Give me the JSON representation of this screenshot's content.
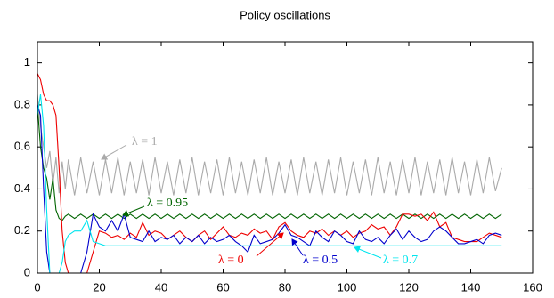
{
  "chart_data": {
    "type": "line",
    "title": "Policy oscillations",
    "x": [
      0,
      1,
      2,
      3,
      4,
      5,
      6,
      7,
      8,
      9,
      10,
      12,
      14,
      16,
      18,
      20,
      22,
      24,
      26,
      28,
      30,
      32,
      34,
      36,
      38,
      40,
      42,
      44,
      46,
      48,
      50,
      52,
      54,
      56,
      58,
      60,
      62,
      64,
      66,
      68,
      70,
      72,
      74,
      76,
      78,
      80,
      82,
      84,
      86,
      88,
      90,
      92,
      94,
      96,
      98,
      100,
      102,
      104,
      106,
      108,
      110,
      112,
      114,
      116,
      118,
      120,
      122,
      124,
      126,
      128,
      130,
      132,
      134,
      136,
      138,
      140,
      142,
      144,
      146,
      148,
      150
    ],
    "series": [
      {
        "name": "λ = 1",
        "color": "#aaaaaa",
        "values": [
          0.85,
          0.7,
          0.6,
          0.5,
          0.58,
          0.42,
          0.55,
          0.38,
          0.53,
          0.4,
          0.54,
          0.37,
          0.55,
          0.38,
          0.53,
          0.37,
          0.54,
          0.38,
          0.55,
          0.37,
          0.53,
          0.38,
          0.54,
          0.37,
          0.55,
          0.38,
          0.53,
          0.37,
          0.54,
          0.38,
          0.55,
          0.37,
          0.53,
          0.38,
          0.54,
          0.37,
          0.55,
          0.38,
          0.53,
          0.37,
          0.54,
          0.38,
          0.55,
          0.37,
          0.53,
          0.38,
          0.54,
          0.37,
          0.55,
          0.38,
          0.53,
          0.37,
          0.54,
          0.38,
          0.55,
          0.37,
          0.53,
          0.38,
          0.54,
          0.37,
          0.55,
          0.38,
          0.53,
          0.37,
          0.54,
          0.38,
          0.55,
          0.37,
          0.53,
          0.38,
          0.54,
          0.37,
          0.55,
          0.38,
          0.53,
          0.37,
          0.54,
          0.38,
          0.55,
          0.39,
          0.5
        ]
      },
      {
        "name": "λ = 0.95",
        "color": "#006400",
        "values": [
          0.8,
          0.6,
          0.5,
          0.45,
          0.35,
          0.45,
          0.3,
          0.26,
          0.25,
          0.27,
          0.28,
          0.26,
          0.28,
          0.26,
          0.28,
          0.26,
          0.28,
          0.26,
          0.28,
          0.26,
          0.28,
          0.26,
          0.28,
          0.26,
          0.28,
          0.26,
          0.28,
          0.26,
          0.28,
          0.26,
          0.28,
          0.26,
          0.28,
          0.26,
          0.28,
          0.26,
          0.28,
          0.26,
          0.28,
          0.26,
          0.28,
          0.26,
          0.28,
          0.26,
          0.28,
          0.26,
          0.28,
          0.26,
          0.28,
          0.26,
          0.28,
          0.26,
          0.28,
          0.26,
          0.28,
          0.26,
          0.28,
          0.26,
          0.28,
          0.26,
          0.28,
          0.26,
          0.28,
          0.26,
          0.28,
          0.26,
          0.28,
          0.26,
          0.28,
          0.26,
          0.28,
          0.26,
          0.28,
          0.26,
          0.28,
          0.26,
          0.28,
          0.26,
          0.28,
          0.26,
          0.28
        ]
      },
      {
        "name": "λ = 0",
        "color": "#ee0000",
        "values": [
          0.95,
          0.92,
          0.85,
          0.82,
          0.82,
          0.8,
          0.75,
          0.5,
          0.2,
          0.05,
          0,
          0,
          0,
          0,
          0.1,
          0.2,
          0.19,
          0.17,
          0.18,
          0.16,
          0.19,
          0.17,
          0.24,
          0.18,
          0.2,
          0.19,
          0.16,
          0.18,
          0.2,
          0.17,
          0.15,
          0.18,
          0.2,
          0.16,
          0.19,
          0.22,
          0.18,
          0.17,
          0.19,
          0.18,
          0.21,
          0.19,
          0.2,
          0.16,
          0.22,
          0.24,
          0.2,
          0.18,
          0.17,
          0.2,
          0.19,
          0.21,
          0.18,
          0.2,
          0.18,
          0.2,
          0.17,
          0.19,
          0.2,
          0.23,
          0.21,
          0.22,
          0.18,
          0.22,
          0.28,
          0.28,
          0.27,
          0.28,
          0.25,
          0.29,
          0.22,
          0.24,
          0.17,
          0.16,
          0.15,
          0.15,
          0.15,
          0.17,
          0.19,
          0.18,
          0.17
        ]
      },
      {
        "name": "λ = 0.5",
        "color": "#0000cc",
        "values": [
          0.8,
          0.75,
          0.4,
          0.1,
          0,
          0,
          0,
          0,
          0,
          0,
          0,
          0,
          0,
          0.1,
          0.28,
          0.22,
          0.2,
          0.25,
          0.2,
          0.28,
          0.17,
          0.16,
          0.15,
          0.2,
          0.15,
          0.17,
          0.16,
          0.18,
          0.14,
          0.17,
          0.15,
          0.18,
          0.14,
          0.17,
          0.15,
          0.16,
          0.18,
          0.15,
          0.13,
          0.1,
          0.18,
          0.14,
          0.15,
          0.16,
          0.19,
          0.23,
          0.18,
          0.17,
          0.15,
          0.13,
          0.2,
          0.17,
          0.15,
          0.2,
          0.18,
          0.15,
          0.14,
          0.2,
          0.16,
          0.15,
          0.17,
          0.14,
          0.18,
          0.21,
          0.16,
          0.2,
          0.17,
          0.15,
          0.16,
          0.2,
          0.22,
          0.2,
          0.17,
          0.14,
          0.14,
          0.15,
          0.16,
          0.14,
          0.18,
          0.19,
          0.18
        ]
      },
      {
        "name": "λ = 0.7",
        "color": "#00e5ee",
        "values": [
          0.75,
          0.85,
          0.7,
          0.3,
          0,
          0,
          0,
          0,
          0.05,
          0.15,
          0.18,
          0.2,
          0.2,
          0.25,
          0.15,
          0.14,
          0.13,
          0.13,
          0.13,
          0.13,
          0.13,
          0.13,
          0.13,
          0.13,
          0.13,
          0.13,
          0.13,
          0.13,
          0.13,
          0.13,
          0.13,
          0.13,
          0.13,
          0.13,
          0.13,
          0.13,
          0.13,
          0.13,
          0.13,
          0.13,
          0.13,
          0.13,
          0.13,
          0.13,
          0.13,
          0.13,
          0.13,
          0.13,
          0.13,
          0.13,
          0.13,
          0.13,
          0.13,
          0.13,
          0.13,
          0.13,
          0.13,
          0.13,
          0.13,
          0.13,
          0.13,
          0.13,
          0.13,
          0.13,
          0.13,
          0.13,
          0.13,
          0.13,
          0.13,
          0.13,
          0.13,
          0.13,
          0.13,
          0.13,
          0.13,
          0.13,
          0.13,
          0.13,
          0.13,
          0.13,
          0.13
        ]
      }
    ],
    "xlim": [
      0,
      160
    ],
    "xticks": [
      0,
      20,
      40,
      60,
      80,
      100,
      120,
      140,
      160
    ],
    "ylim": [
      0,
      1.1
    ],
    "yticks": [
      0,
      0.2,
      0.4,
      0.6,
      0.8,
      1
    ]
  }
}
